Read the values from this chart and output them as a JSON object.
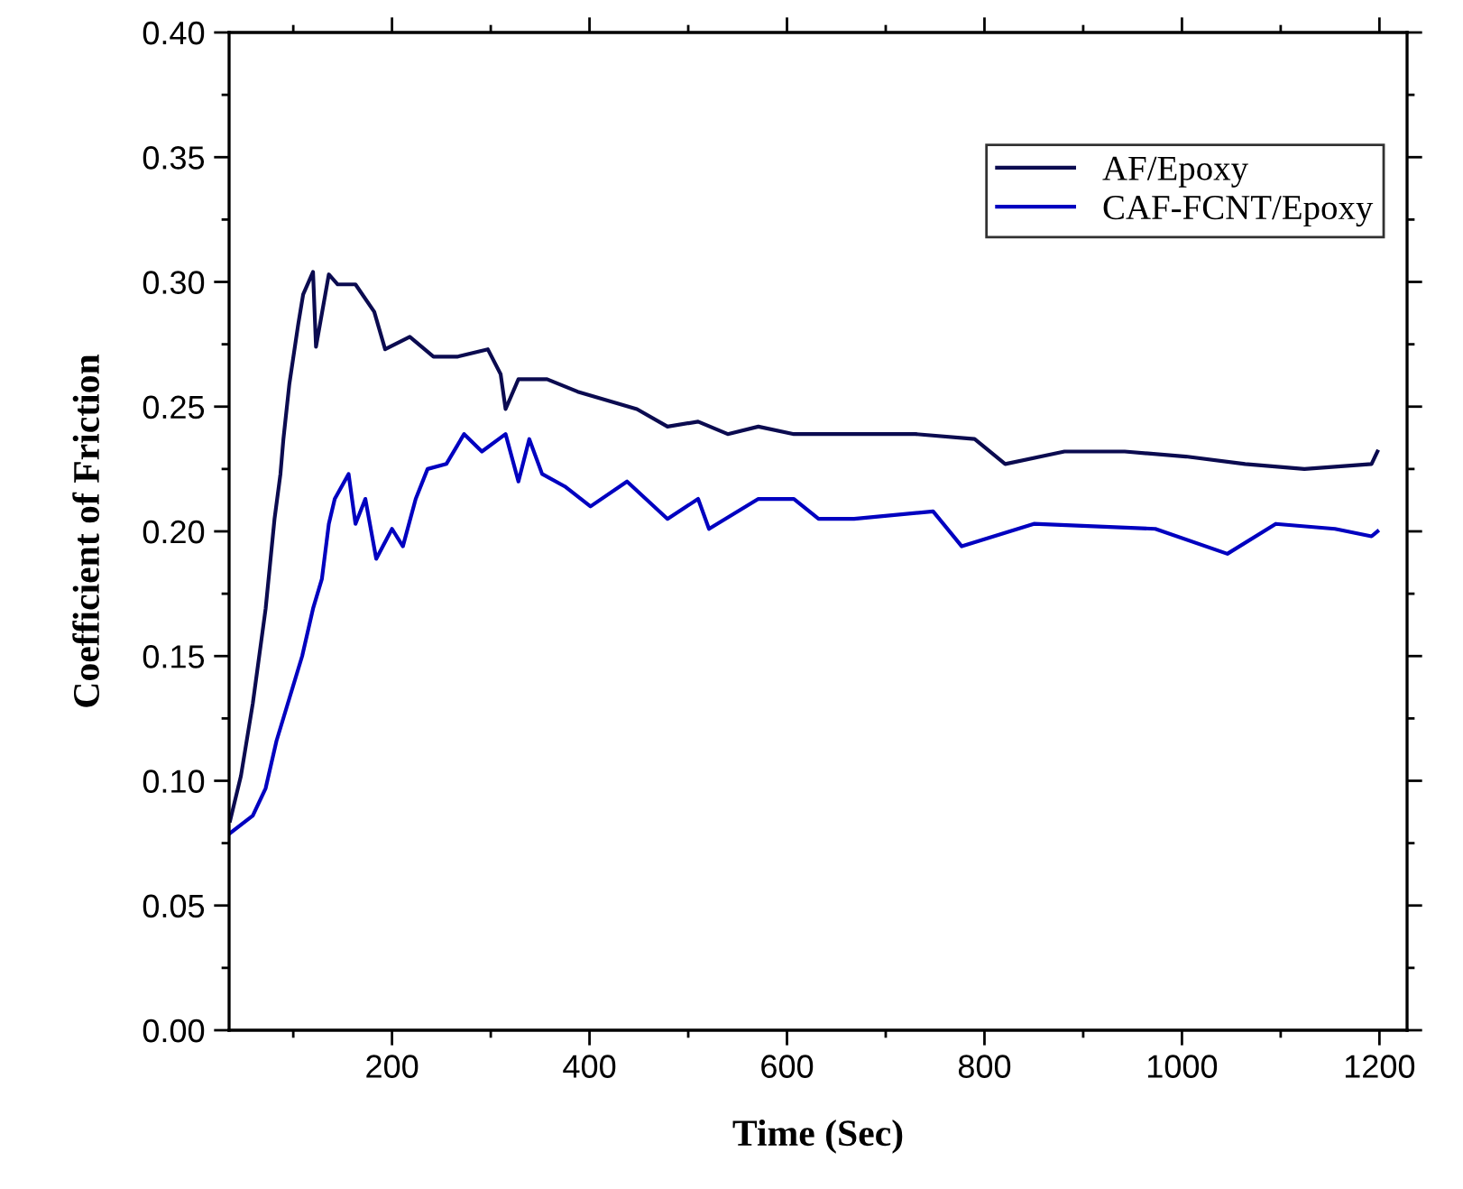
{
  "chart_data": {
    "type": "line",
    "xlabel": "Time (Sec)",
    "ylabel": "Coefficient of Friction",
    "xlim": [
      35,
      1228
    ],
    "xticks": [
      200,
      400,
      600,
      800,
      1000,
      1200
    ],
    "ylim": [
      0,
      0.4
    ],
    "yticks": [
      {
        "value": 0,
        "label": "0.00"
      },
      0.05,
      {
        "value": 0.1,
        "label": "0.10"
      },
      0.15,
      {
        "value": 0.2,
        "label": "0.20"
      },
      0.25,
      {
        "value": 0.3,
        "label": "0.30"
      },
      0.35,
      {
        "value": 0.4,
        "label": "0.40"
      }
    ],
    "grid": false,
    "legend": "top right",
    "marker": "none",
    "line_style": "solid",
    "series": [
      {
        "name": "AF/Epoxy",
        "color": "#0b0b50",
        "x": [
          36,
          47,
          59,
          72,
          81,
          87,
          90,
          96,
          105,
          110,
          120,
          123,
          136,
          145,
          163,
          182,
          193,
          218,
          242,
          266,
          297,
          310,
          315,
          328,
          357,
          388,
          448,
          479,
          510,
          540,
          571,
          607,
          632,
          668,
          730,
          790,
          821,
          881,
          942,
          1004,
          1064,
          1124,
          1192,
          1198
        ],
        "values": [
          0.084,
          0.102,
          0.131,
          0.169,
          0.205,
          0.223,
          0.237,
          0.259,
          0.283,
          0.295,
          0.304,
          0.274,
          0.303,
          0.299,
          0.299,
          0.288,
          0.273,
          0.278,
          0.27,
          0.27,
          0.273,
          0.263,
          0.249,
          0.261,
          0.261,
          0.256,
          0.249,
          0.242,
          0.244,
          0.239,
          0.242,
          0.239,
          0.239,
          0.239,
          0.239,
          0.237,
          0.227,
          0.232,
          0.232,
          0.23,
          0.227,
          0.225,
          0.227,
          0.232
        ]
      },
      {
        "name": "CAF-FCNT/Epoxy",
        "color": "#0000c0",
        "x": [
          36,
          59,
          72,
          83,
          96,
          109,
          120,
          129,
          136,
          142,
          156,
          163,
          173,
          184,
          200,
          211,
          224,
          236,
          255,
          273,
          291,
          315,
          328,
          339,
          352,
          375,
          401,
          438,
          479,
          510,
          521,
          571,
          607,
          632,
          668,
          748,
          777,
          850,
          973,
          1046,
          1095,
          1155,
          1192,
          1198
        ],
        "values": [
          0.079,
          0.086,
          0.097,
          0.116,
          0.133,
          0.15,
          0.169,
          0.181,
          0.203,
          0.213,
          0.223,
          0.203,
          0.213,
          0.189,
          0.201,
          0.194,
          0.213,
          0.225,
          0.227,
          0.239,
          0.232,
          0.239,
          0.22,
          0.237,
          0.223,
          0.218,
          0.21,
          0.22,
          0.205,
          0.213,
          0.201,
          0.213,
          0.213,
          0.205,
          0.205,
          0.208,
          0.194,
          0.203,
          0.201,
          0.191,
          0.203,
          0.201,
          0.198,
          0.2
        ]
      }
    ]
  }
}
